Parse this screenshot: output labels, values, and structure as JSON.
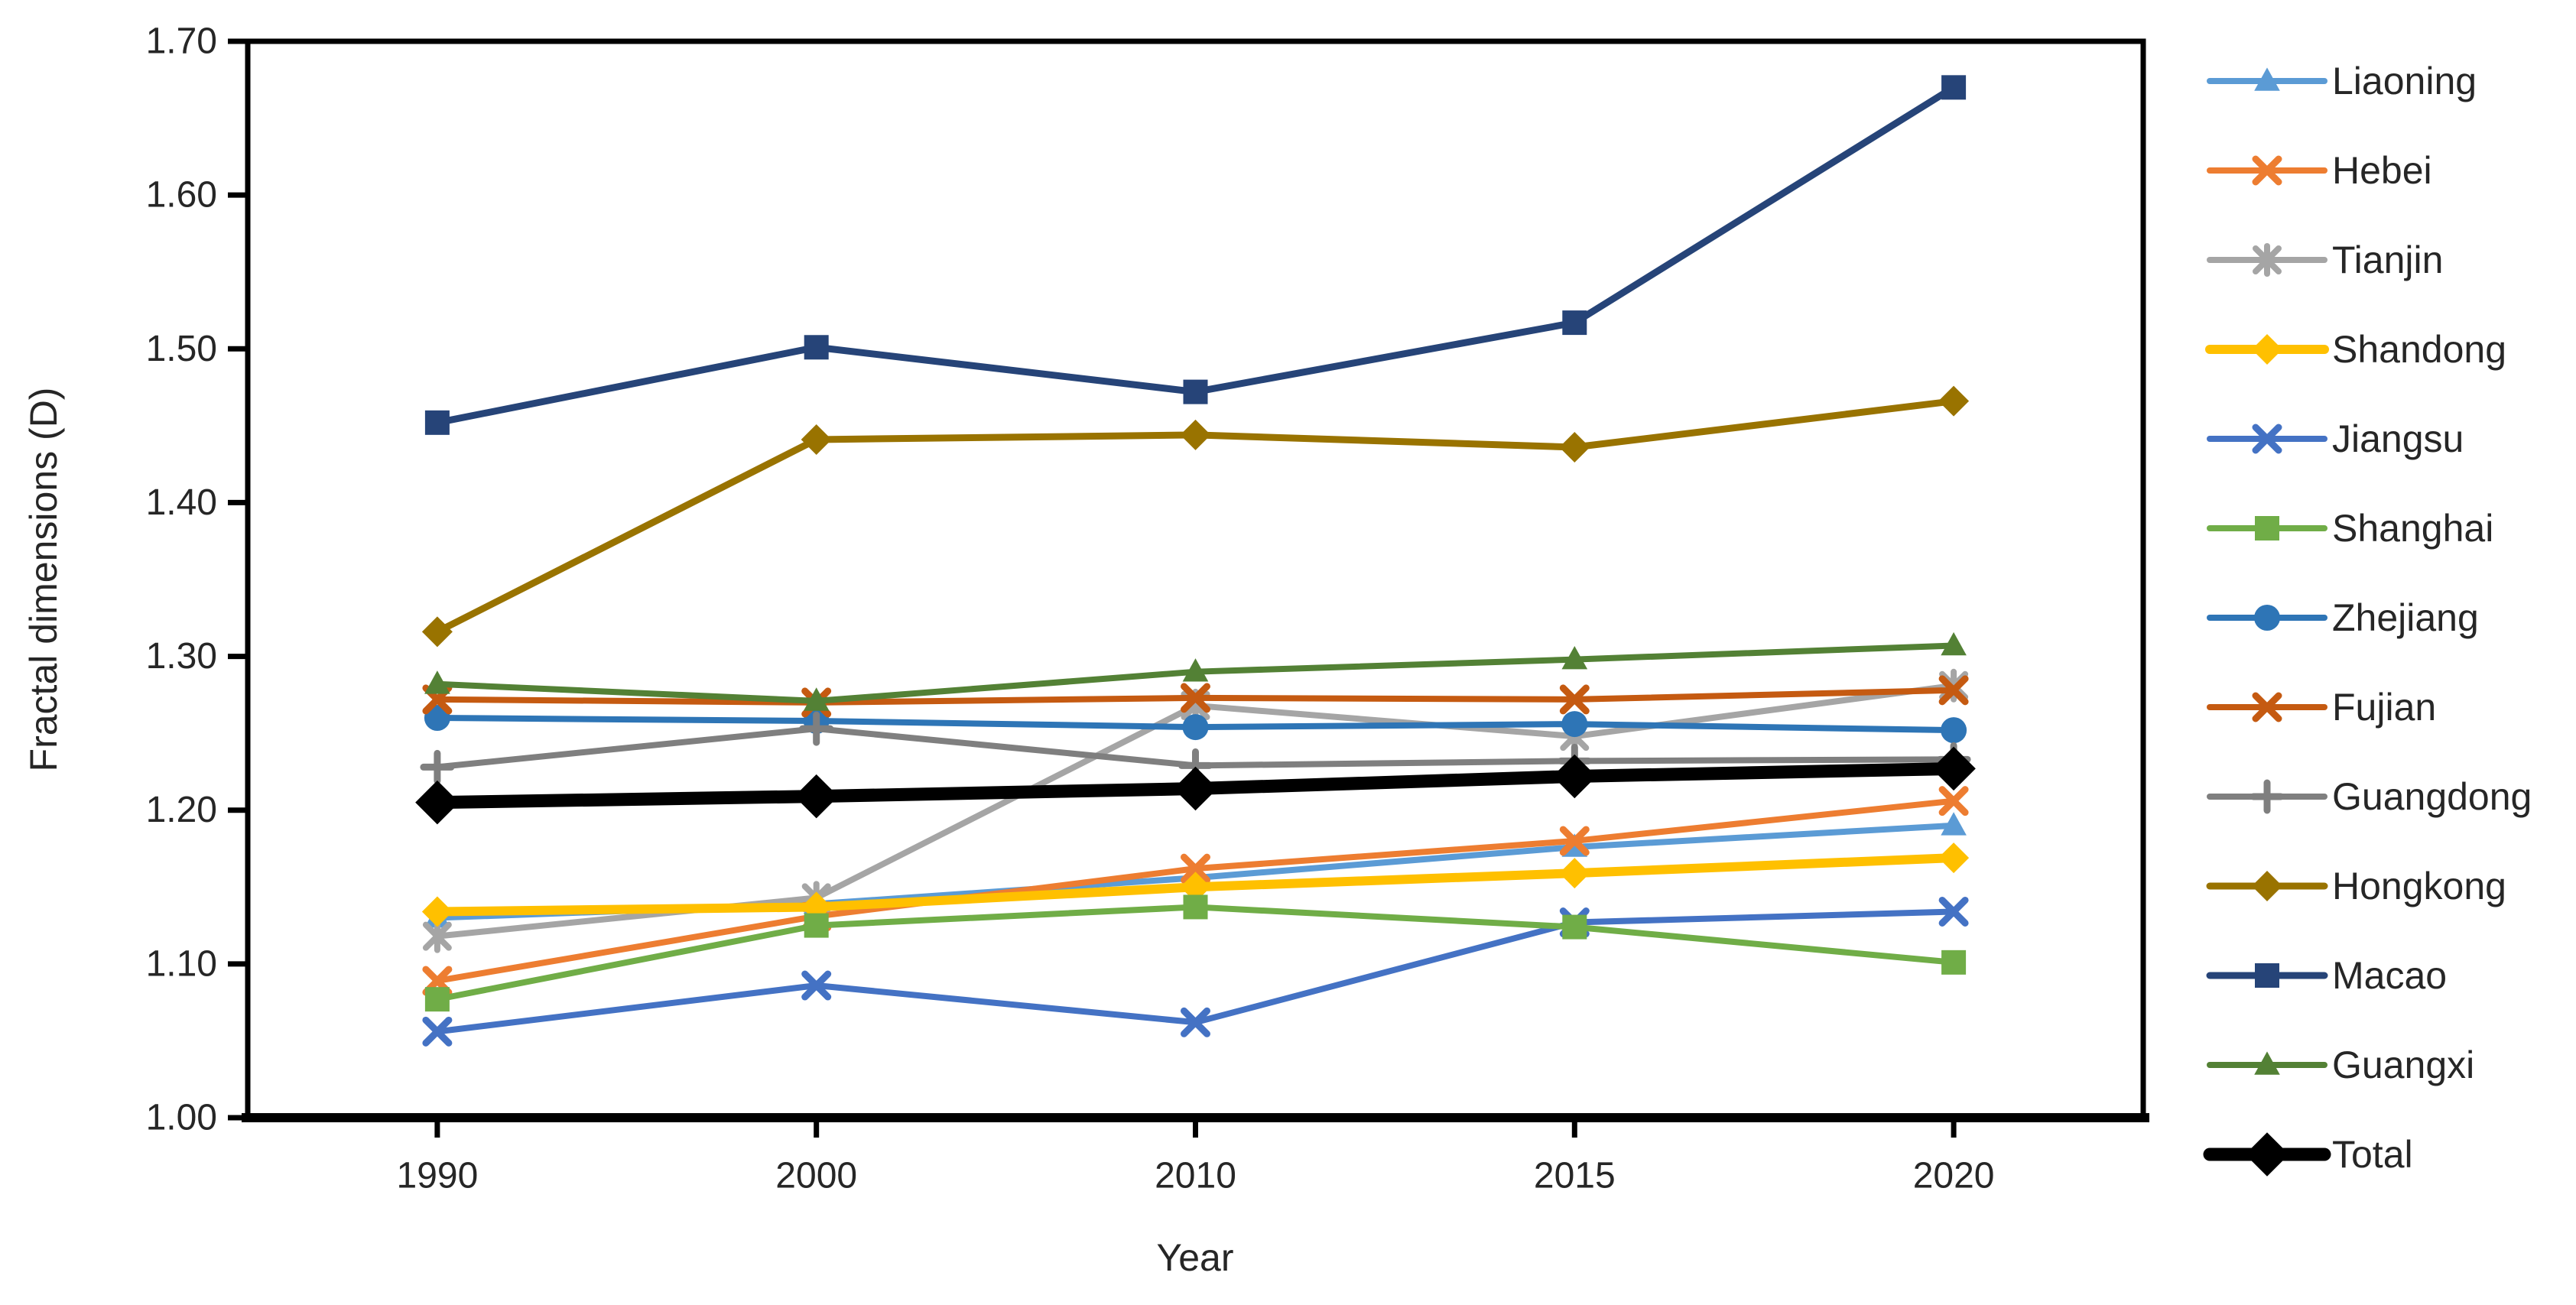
{
  "chart_data": {
    "type": "line",
    "title": "",
    "xlabel": "Year",
    "ylabel": "Fractal dimensions (D)",
    "categories": [
      "1990",
      "2000",
      "2010",
      "2015",
      "2020"
    ],
    "y_axis": {
      "min": 1.0,
      "max": 1.7,
      "step": 0.1,
      "tick_labels": [
        "1.00",
        "1.10",
        "1.20",
        "1.30",
        "1.40",
        "1.50",
        "1.60",
        "1.70"
      ]
    },
    "grid": false,
    "legend_position": "right",
    "series": [
      {
        "name": "Liaoning",
        "color": "#5B9BD5",
        "marker": "triangle",
        "line_width": 8,
        "marker_size": 16,
        "values": [
          1.13,
          1.139,
          1.156,
          1.176,
          1.19
        ]
      },
      {
        "name": "Hebei",
        "color": "#ED7D31",
        "marker": "x",
        "line_width": 8,
        "marker_size": 15,
        "values": [
          1.089,
          1.131,
          1.162,
          1.18,
          1.206
        ]
      },
      {
        "name": "Tianjin",
        "color": "#A5A5A5",
        "marker": "star",
        "line_width": 8,
        "marker_size": 15,
        "values": [
          1.118,
          1.143,
          1.268,
          1.248,
          1.281
        ]
      },
      {
        "name": "Shandong",
        "color": "#FFC000",
        "marker": "diamond",
        "line_width": 12,
        "marker_size": 16,
        "values": [
          1.134,
          1.137,
          1.15,
          1.159,
          1.169
        ]
      },
      {
        "name": "Jiangsu",
        "color": "#4472C4",
        "marker": "x",
        "line_width": 8,
        "marker_size": 15,
        "values": [
          1.056,
          1.086,
          1.062,
          1.127,
          1.134
        ]
      },
      {
        "name": "Shanghai",
        "color": "#70AD47",
        "marker": "square",
        "line_width": 8,
        "marker_size": 16,
        "values": [
          1.077,
          1.125,
          1.137,
          1.124,
          1.101
        ]
      },
      {
        "name": "Zhejiang",
        "color": "#2E75B6",
        "marker": "circle",
        "line_width": 8,
        "marker_size": 17,
        "values": [
          1.26,
          1.258,
          1.254,
          1.256,
          1.252
        ]
      },
      {
        "name": "Fujian",
        "color": "#C55A11",
        "marker": "x",
        "line_width": 8,
        "marker_size": 15,
        "values": [
          1.272,
          1.27,
          1.273,
          1.272,
          1.278
        ]
      },
      {
        "name": "Guangdong",
        "color": "#7F7F7F",
        "marker": "plus",
        "line_width": 8,
        "marker_size": 16,
        "values": [
          1.228,
          1.253,
          1.229,
          1.232,
          1.233
        ]
      },
      {
        "name": "Hongkong",
        "color": "#997300",
        "marker": "diamond",
        "line_width": 9,
        "marker_size": 16,
        "values": [
          1.316,
          1.441,
          1.444,
          1.436,
          1.466
        ]
      },
      {
        "name": "Macao",
        "color": "#264478",
        "marker": "square",
        "line_width": 9,
        "marker_size": 16,
        "values": [
          1.452,
          1.501,
          1.472,
          1.517,
          1.67
        ]
      },
      {
        "name": "Guangxi",
        "color": "#538135",
        "marker": "triangle",
        "line_width": 8,
        "marker_size": 16,
        "values": [
          1.282,
          1.271,
          1.29,
          1.298,
          1.307
        ]
      },
      {
        "name": "Total",
        "color": "#000000",
        "marker": "diamond",
        "line_width": 17,
        "marker_size": 23,
        "values": [
          1.205,
          1.209,
          1.214,
          1.222,
          1.227
        ]
      }
    ]
  },
  "colors": {
    "axis": "#000000",
    "text": "#262626",
    "background": "#FFFFFF"
  }
}
